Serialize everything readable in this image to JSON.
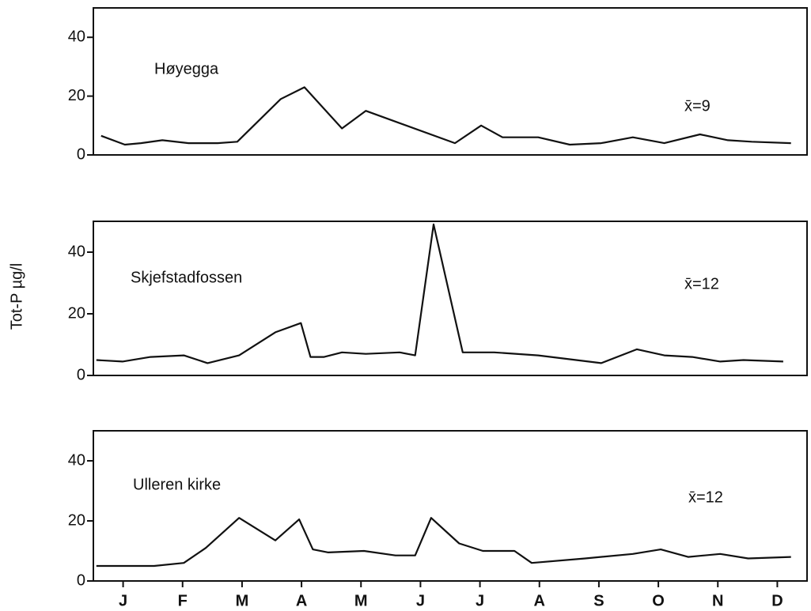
{
  "chart_data": [
    {
      "type": "line",
      "title": "Høyegga",
      "annotation": "x̄=9",
      "color": "#111111",
      "x": [
        0.13,
        0.53,
        0.8,
        1.16,
        1.6,
        2.09,
        2.42,
        3.15,
        3.55,
        4.18,
        4.58,
        6.08,
        6.52,
        6.88,
        7.48,
        8.01,
        8.54,
        9.07,
        9.6,
        10.2,
        10.67,
        11.07,
        11.73
      ],
      "values": [
        6.5,
        3.5,
        4,
        5,
        4,
        4,
        4.5,
        19,
        23,
        9,
        15,
        4,
        10,
        6,
        6,
        3.5,
        4,
        6,
        4,
        7,
        5,
        4.5,
        4
      ],
      "xlim": [
        0,
        12
      ],
      "ylim": [
        0,
        50
      ],
      "yticks": [
        0,
        20,
        40
      ]
    },
    {
      "type": "line",
      "title": "Skjefstadfossen",
      "annotation": "x̄=12",
      "color": "#111111",
      "ylabel": "Tot-P µg/l",
      "x": [
        0.05,
        0.49,
        0.96,
        1.52,
        1.92,
        2.45,
        3.06,
        3.49,
        3.65,
        3.88,
        4.18,
        4.58,
        5.15,
        5.41,
        5.72,
        6.21,
        6.74,
        7.48,
        8.54,
        9.14,
        9.6,
        10.07,
        10.54,
        10.93,
        11.6
      ],
      "values": [
        5,
        4.5,
        6,
        6.5,
        4,
        6.5,
        14,
        17,
        6,
        6,
        7.5,
        7,
        7.5,
        6.5,
        49,
        7.5,
        7.5,
        6.5,
        4,
        8.5,
        6.5,
        6,
        4.5,
        5,
        4.5
      ],
      "xlim": [
        0,
        12
      ],
      "ylim": [
        0,
        50
      ],
      "yticks": [
        0,
        20,
        40
      ]
    },
    {
      "type": "line",
      "title": "Ulleren kirke",
      "annotation": "x̄=12",
      "color": "#111111",
      "x": [
        0.05,
        0.56,
        1.02,
        1.52,
        1.89,
        2.45,
        3.06,
        3.46,
        3.69,
        3.95,
        4.55,
        5.08,
        5.41,
        5.68,
        6.15,
        6.55,
        7.08,
        7.37,
        8.27,
        9.07,
        9.54,
        10.0,
        10.54,
        11.01,
        11.73
      ],
      "values": [
        5,
        5,
        5,
        6,
        11,
        21,
        13.5,
        20.5,
        10.5,
        9.5,
        10,
        8.5,
        8.5,
        21,
        12.5,
        10,
        10,
        6,
        7.5,
        9,
        10.5,
        8,
        9,
        7.5,
        8
      ],
      "xlim": [
        0,
        12
      ],
      "ylim": [
        0,
        50
      ],
      "yticks": [
        0,
        20,
        40
      ],
      "xticks": [
        {
          "value": 0.5,
          "label": "J"
        },
        {
          "value": 1.5,
          "label": "F"
        },
        {
          "value": 2.5,
          "label": "M"
        },
        {
          "value": 3.5,
          "label": "A"
        },
        {
          "value": 4.5,
          "label": "M"
        },
        {
          "value": 5.5,
          "label": "J"
        },
        {
          "value": 6.5,
          "label": "J"
        },
        {
          "value": 7.5,
          "label": "A"
        },
        {
          "value": 8.5,
          "label": "S"
        },
        {
          "value": 9.5,
          "label": "O"
        },
        {
          "value": 10.5,
          "label": "N"
        },
        {
          "value": 11.5,
          "label": "D"
        }
      ]
    }
  ]
}
